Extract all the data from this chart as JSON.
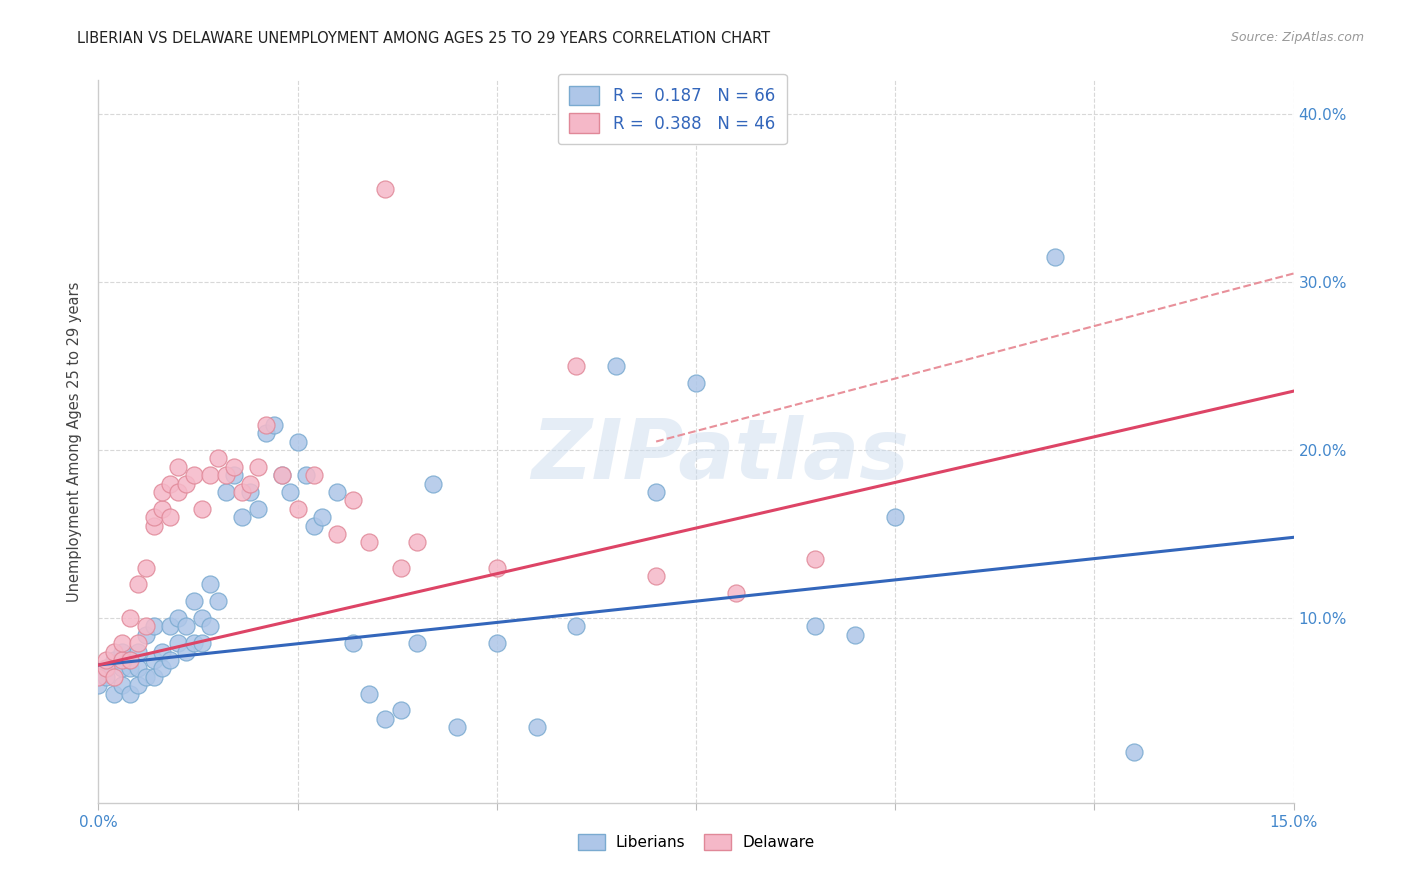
{
  "title": "LIBERIAN VS DELAWARE UNEMPLOYMENT AMONG AGES 25 TO 29 YEARS CORRELATION CHART",
  "source": "Source: ZipAtlas.com",
  "ylabel": "Unemployment Among Ages 25 to 29 years",
  "xlim": [
    0.0,
    0.15
  ],
  "ylim": [
    -0.01,
    0.42
  ],
  "xtick_positions": [
    0.0,
    0.025,
    0.05,
    0.075,
    0.1,
    0.125,
    0.15
  ],
  "xtick_labels": [
    "0.0%",
    "",
    "",
    "",
    "",
    "",
    "15.0%"
  ],
  "ytick_positions": [
    0.0,
    0.1,
    0.2,
    0.3,
    0.4
  ],
  "ytick_labels_right": [
    "",
    "10.0%",
    "20.0%",
    "30.0%",
    "40.0%"
  ],
  "legend_r_blue": "0.187",
  "legend_n_blue": "66",
  "legend_r_pink": "0.388",
  "legend_n_pink": "46",
  "blue_face": "#aec6e8",
  "blue_edge": "#7aaad0",
  "pink_face": "#f5b8c8",
  "pink_edge": "#e08898",
  "blue_line_color": "#3366bb",
  "pink_line_color": "#dd4466",
  "dash_line_color": "#e8909a",
  "grid_color": "#d8d8d8",
  "watermark": "ZIPatlas",
  "title_color": "#222222",
  "source_color": "#999999",
  "tick_color": "#4488cc",
  "ylabel_color": "#444444",
  "blue_line_x0": 0.0,
  "blue_line_y0": 0.072,
  "blue_line_x1": 0.15,
  "blue_line_y1": 0.148,
  "pink_line_x0": 0.0,
  "pink_line_y0": 0.072,
  "pink_line_x1": 0.15,
  "pink_line_y1": 0.235,
  "dash_line_x0": 0.07,
  "dash_line_y0": 0.205,
  "dash_line_x1": 0.15,
  "dash_line_y1": 0.305,
  "blue_x": [
    0.0,
    0.001,
    0.001,
    0.002,
    0.002,
    0.003,
    0.003,
    0.003,
    0.004,
    0.004,
    0.004,
    0.005,
    0.005,
    0.005,
    0.006,
    0.006,
    0.007,
    0.007,
    0.007,
    0.008,
    0.008,
    0.009,
    0.009,
    0.01,
    0.01,
    0.011,
    0.011,
    0.012,
    0.012,
    0.013,
    0.013,
    0.014,
    0.014,
    0.015,
    0.016,
    0.017,
    0.018,
    0.019,
    0.02,
    0.021,
    0.022,
    0.023,
    0.024,
    0.025,
    0.026,
    0.027,
    0.028,
    0.03,
    0.032,
    0.034,
    0.036,
    0.038,
    0.04,
    0.042,
    0.045,
    0.05,
    0.055,
    0.06,
    0.065,
    0.07,
    0.075,
    0.09,
    0.095,
    0.1,
    0.12,
    0.13
  ],
  "blue_y": [
    0.06,
    0.065,
    0.07,
    0.055,
    0.075,
    0.06,
    0.07,
    0.08,
    0.055,
    0.07,
    0.075,
    0.06,
    0.07,
    0.08,
    0.065,
    0.09,
    0.065,
    0.075,
    0.095,
    0.07,
    0.08,
    0.075,
    0.095,
    0.085,
    0.1,
    0.08,
    0.095,
    0.085,
    0.11,
    0.085,
    0.1,
    0.095,
    0.12,
    0.11,
    0.175,
    0.185,
    0.16,
    0.175,
    0.165,
    0.21,
    0.215,
    0.185,
    0.175,
    0.205,
    0.185,
    0.155,
    0.16,
    0.175,
    0.085,
    0.055,
    0.04,
    0.045,
    0.085,
    0.18,
    0.035,
    0.085,
    0.035,
    0.095,
    0.25,
    0.175,
    0.24,
    0.095,
    0.09,
    0.16,
    0.315,
    0.02
  ],
  "pink_x": [
    0.0,
    0.001,
    0.001,
    0.002,
    0.002,
    0.003,
    0.003,
    0.004,
    0.004,
    0.005,
    0.005,
    0.006,
    0.006,
    0.007,
    0.007,
    0.008,
    0.008,
    0.009,
    0.009,
    0.01,
    0.01,
    0.011,
    0.012,
    0.013,
    0.014,
    0.015,
    0.016,
    0.017,
    0.018,
    0.019,
    0.02,
    0.021,
    0.023,
    0.025,
    0.027,
    0.03,
    0.032,
    0.034,
    0.036,
    0.038,
    0.04,
    0.05,
    0.06,
    0.07,
    0.08,
    0.09
  ],
  "pink_y": [
    0.065,
    0.07,
    0.075,
    0.08,
    0.065,
    0.075,
    0.085,
    0.075,
    0.1,
    0.085,
    0.12,
    0.095,
    0.13,
    0.155,
    0.16,
    0.165,
    0.175,
    0.16,
    0.18,
    0.175,
    0.19,
    0.18,
    0.185,
    0.165,
    0.185,
    0.195,
    0.185,
    0.19,
    0.175,
    0.18,
    0.19,
    0.215,
    0.185,
    0.165,
    0.185,
    0.15,
    0.17,
    0.145,
    0.355,
    0.13,
    0.145,
    0.13,
    0.25,
    0.125,
    0.115,
    0.135
  ]
}
